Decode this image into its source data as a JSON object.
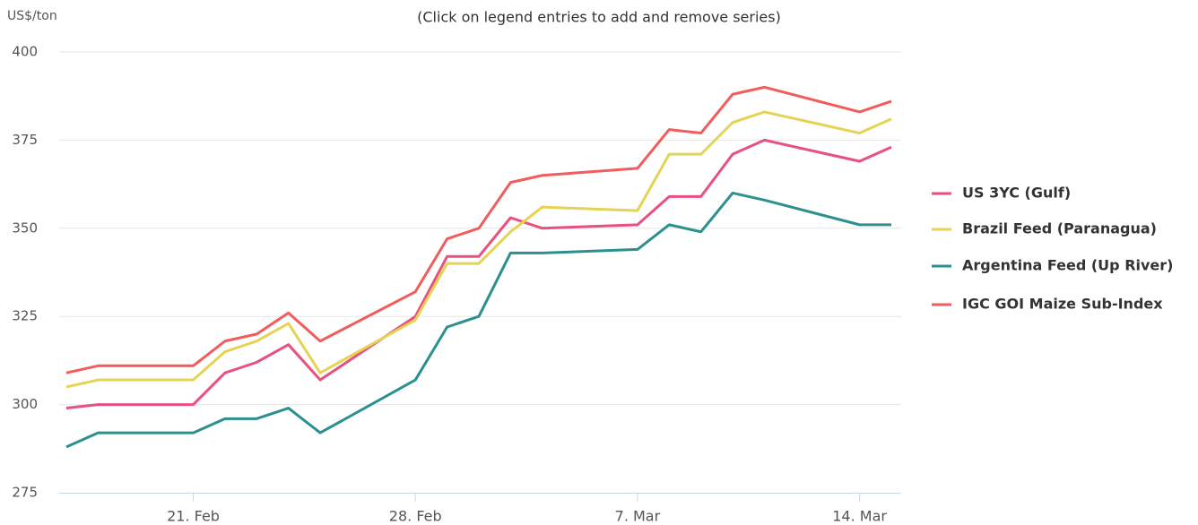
{
  "chart_data": {
    "type": "line",
    "subtitle": "(Click on legend entries to add and remove series)",
    "y_axis_label": "US$/ton",
    "x": [
      "17. Feb",
      "18. Feb",
      "21. Feb",
      "22. Feb",
      "23. Feb",
      "24. Feb",
      "25. Feb",
      "28. Feb",
      "1. Mar",
      "2. Mar",
      "3. Mar",
      "4. Mar",
      "7. Mar",
      "8. Mar",
      "9. Mar",
      "10. Mar",
      "11. Mar",
      "14. Mar",
      "15. Mar"
    ],
    "xlim": [
      "17. Feb",
      "15. Mar"
    ],
    "xticks": [
      "21. Feb",
      "28. Feb",
      "7. Mar",
      "14. Mar"
    ],
    "ylim": [
      275,
      400
    ],
    "yticks": [
      275,
      300,
      325,
      350,
      375,
      400
    ],
    "grid": true,
    "legend": "right",
    "series": [
      {
        "name": "US 3YC (Gulf)",
        "color": "#e8507f",
        "values": [
          299,
          300,
          300,
          309,
          312,
          317,
          307,
          325,
          342,
          342,
          353,
          350,
          351,
          359,
          359,
          371,
          375,
          369,
          373
        ]
      },
      {
        "name": "Brazil Feed (Paranagua)",
        "color": "#e4d354",
        "values": [
          305,
          307,
          307,
          315,
          318,
          323,
          309,
          324,
          340,
          340,
          349,
          356,
          355,
          371,
          371,
          380,
          383,
          377,
          381
        ]
      },
      {
        "name": "Argentina Feed (Up River)",
        "color": "#2b908f",
        "values": [
          288,
          292,
          292,
          296,
          296,
          299,
          292,
          307,
          322,
          325,
          343,
          343,
          344,
          351,
          349,
          360,
          358,
          351,
          351
        ]
      },
      {
        "name": "IGC GOI Maize Sub-Index",
        "color": "#f15c5c",
        "values": [
          309,
          311,
          311,
          318,
          320,
          326,
          318,
          332,
          347,
          350,
          363,
          365,
          367,
          378,
          377,
          388,
          390,
          383,
          386
        ]
      }
    ]
  }
}
